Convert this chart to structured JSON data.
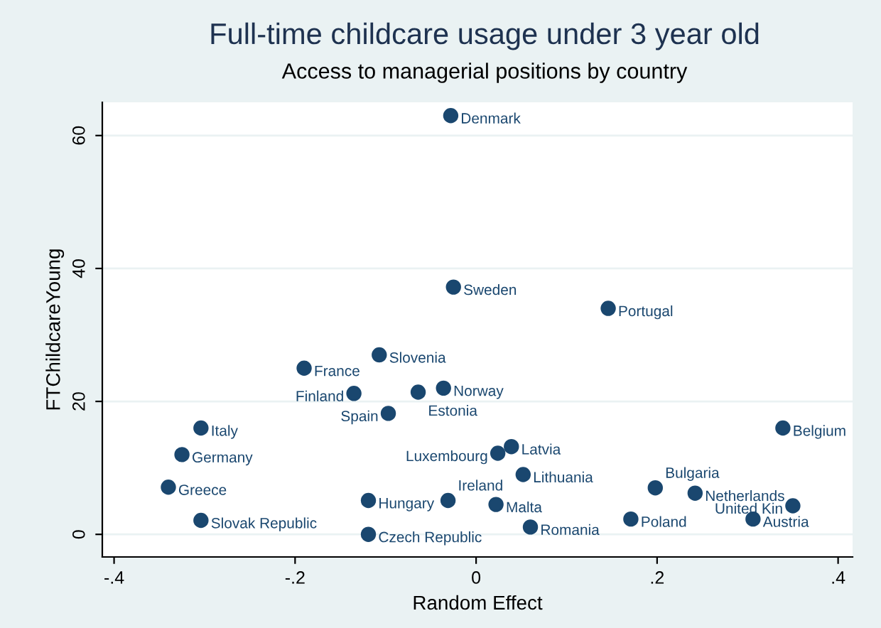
{
  "chart_data": {
    "type": "scatter",
    "title": "Full-time childcare usage under 3 year old",
    "subtitle": "Access to managerial positions by country",
    "xlabel": "Random Effect",
    "ylabel": "FTChildcareYoung",
    "series": [
      {
        "color": "#1a476f",
        "x": [
          -0.028,
          -0.025,
          0.146,
          -0.107,
          -0.19,
          -0.135,
          -0.064,
          -0.036,
          -0.097,
          -0.304,
          -0.325,
          -0.34,
          -0.304,
          -0.119,
          -0.031,
          -0.119,
          0.022,
          0.024,
          0.039,
          0.052,
          0.06,
          0.171,
          0.198,
          0.242,
          0.306,
          0.35,
          0.339
        ],
        "values": [
          63.0,
          37.2,
          34.0,
          27.0,
          25.0,
          21.2,
          21.4,
          22.0,
          18.2,
          16.0,
          12.0,
          7.1,
          2.1,
          5.1,
          5.1,
          0.0,
          4.5,
          12.2,
          13.2,
          9.0,
          1.1,
          2.3,
          7.0,
          6.2,
          2.3,
          4.3,
          16.0
        ]
      }
    ],
    "annotations": [
      {
        "text": "Denmark",
        "x": -0.028,
        "y": 63.0
      },
      {
        "text": "Sweden",
        "x": -0.025,
        "y": 37.2
      },
      {
        "text": "Portugal",
        "x": 0.146,
        "y": 34.0
      },
      {
        "text": "Slovenia",
        "x": -0.107,
        "y": 27.0
      },
      {
        "text": "France",
        "x": -0.19,
        "y": 25.0
      },
      {
        "text": "Finland",
        "x": -0.135,
        "y": 21.2
      },
      {
        "text": "Estonia",
        "x": -0.064,
        "y": 21.4
      },
      {
        "text": "Norway",
        "x": -0.036,
        "y": 22.0
      },
      {
        "text": "Spain",
        "x": -0.097,
        "y": 18.2
      },
      {
        "text": "Italy",
        "x": -0.304,
        "y": 16.0
      },
      {
        "text": "Germany",
        "x": -0.325,
        "y": 12.0
      },
      {
        "text": "Greece",
        "x": -0.34,
        "y": 7.1
      },
      {
        "text": "Slovak Republic",
        "x": -0.304,
        "y": 2.1
      },
      {
        "text": "Hungary",
        "x": -0.119,
        "y": 5.1
      },
      {
        "text": "Ireland",
        "x": -0.031,
        "y": 5.1
      },
      {
        "text": "Czech Republic",
        "x": -0.119,
        "y": 0.0
      },
      {
        "text": "Malta",
        "x": 0.022,
        "y": 4.5
      },
      {
        "text": "Luxembourg",
        "x": 0.024,
        "y": 12.2
      },
      {
        "text": "Latvia",
        "x": 0.039,
        "y": 13.2
      },
      {
        "text": "Lithuania",
        "x": 0.052,
        "y": 9.0
      },
      {
        "text": "Romania",
        "x": 0.06,
        "y": 1.1
      },
      {
        "text": "Poland",
        "x": 0.171,
        "y": 2.3
      },
      {
        "text": "Bulgaria",
        "x": 0.198,
        "y": 7.0
      },
      {
        "text": "Netherlands",
        "x": 0.242,
        "y": 6.2
      },
      {
        "text": "Austria",
        "x": 0.306,
        "y": 2.3
      },
      {
        "text": "United Kin",
        "x": 0.35,
        "y": 4.3
      },
      {
        "text": "Belgium",
        "x": 0.339,
        "y": 16.0
      }
    ],
    "xlim": [
      -0.413,
      0.416
    ],
    "ylim": [
      -3.4,
      65
    ],
    "xticks": [
      {
        "value": -0.4,
        "label": "-.4"
      },
      {
        "value": -0.2,
        "label": "-.2"
      },
      0,
      {
        "value": 0.2,
        "label": ".2"
      },
      {
        "value": 0.4,
        "label": ".4"
      }
    ],
    "yticks": [
      0,
      20,
      40,
      60
    ],
    "grid": "y",
    "marker": "circle"
  }
}
